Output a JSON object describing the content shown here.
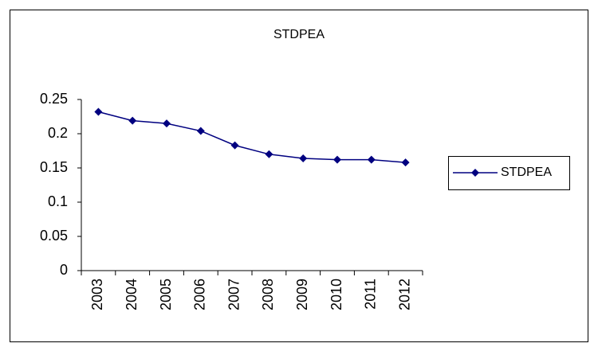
{
  "chart_data": {
    "type": "line",
    "title": "STDPEA",
    "categories": [
      "2003",
      "2004",
      "2005",
      "2006",
      "2007",
      "2008",
      "2009",
      "2010",
      "2011",
      "2012"
    ],
    "series": [
      {
        "name": "STDPEA",
        "color": "#000080",
        "values": [
          0.232,
          0.219,
          0.215,
          0.204,
          0.183,
          0.17,
          0.164,
          0.162,
          0.162,
          0.158
        ]
      }
    ],
    "ylim": [
      0,
      0.25
    ],
    "yticks": [
      0,
      0.05,
      0.1,
      0.15,
      0.2,
      0.25
    ],
    "grid": false,
    "legend": "right"
  }
}
